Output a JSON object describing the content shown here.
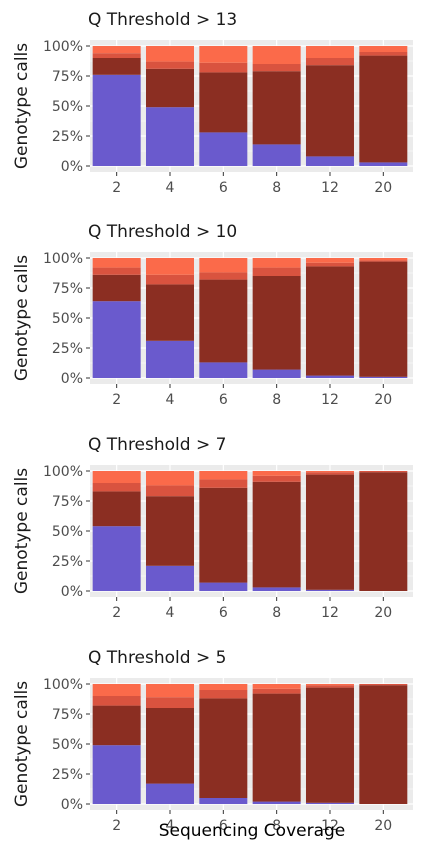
{
  "x_axis_title": "Sequencing Coverage",
  "y_axis_title": "Genotype calls",
  "colors": {
    "panel_bg": "#ebebeb",
    "grid": "#ffffff",
    "segment_colors": [
      "#6a5acd",
      "#8b2e22",
      "#d9533f",
      "#fb6a4a"
    ],
    "text_title": "#1a1a1a",
    "text_tick": "#4d4d4d",
    "tick_mark": "#333333"
  },
  "chart_data": [
    {
      "type": "bar",
      "stacked": true,
      "title": "Q Threshold > 13",
      "categories": [
        "2",
        "4",
        "6",
        "8",
        "12",
        "20"
      ],
      "y_ticks": [
        "0%",
        "25%",
        "50%",
        "75%",
        "100%"
      ],
      "ylim": [
        0,
        100
      ],
      "series": [
        {
          "values": [
            76,
            49,
            28,
            18,
            8,
            3
          ]
        },
        {
          "values": [
            14,
            32,
            50,
            61,
            76,
            89
          ]
        },
        {
          "values": [
            4,
            6,
            8,
            6,
            6,
            3
          ]
        },
        {
          "values": [
            6,
            13,
            14,
            15,
            10,
            5
          ]
        }
      ]
    },
    {
      "type": "bar",
      "stacked": true,
      "title": "Q Threshold > 10",
      "categories": [
        "2",
        "4",
        "6",
        "8",
        "12",
        "20"
      ],
      "y_ticks": [
        "0%",
        "25%",
        "50%",
        "75%",
        "100%"
      ],
      "ylim": [
        0,
        100
      ],
      "series": [
        {
          "values": [
            64,
            31,
            13,
            7,
            2,
            1
          ]
        },
        {
          "values": [
            22,
            47,
            69,
            78,
            91,
            96
          ]
        },
        {
          "values": [
            6,
            8,
            6,
            7,
            3,
            1
          ]
        },
        {
          "values": [
            8,
            14,
            12,
            8,
            4,
            2
          ]
        }
      ]
    },
    {
      "type": "bar",
      "stacked": true,
      "title": "Q Threshold > 7",
      "categories": [
        "2",
        "4",
        "6",
        "8",
        "12",
        "20"
      ],
      "y_ticks": [
        "0%",
        "25%",
        "50%",
        "75%",
        "100%"
      ],
      "ylim": [
        0,
        100
      ],
      "series": [
        {
          "values": [
            54,
            21,
            7,
            3,
            1,
            0
          ]
        },
        {
          "values": [
            29,
            58,
            79,
            88,
            96,
            99
          ]
        },
        {
          "values": [
            7,
            9,
            7,
            5,
            2,
            1
          ]
        },
        {
          "values": [
            10,
            12,
            7,
            4,
            1,
            0
          ]
        }
      ]
    },
    {
      "type": "bar",
      "stacked": true,
      "title": "Q Threshold > 5",
      "categories": [
        "2",
        "4",
        "6",
        "8",
        "12",
        "20"
      ],
      "y_ticks": [
        "0%",
        "25%",
        "50%",
        "75%",
        "100%"
      ],
      "ylim": [
        0,
        100
      ],
      "series": [
        {
          "values": [
            49,
            17,
            5,
            2,
            1,
            0
          ]
        },
        {
          "values": [
            33,
            63,
            83,
            90,
            96,
            99
          ]
        },
        {
          "values": [
            8,
            9,
            7,
            4,
            2,
            1
          ]
        },
        {
          "values": [
            10,
            11,
            5,
            4,
            1,
            0
          ]
        }
      ]
    }
  ]
}
